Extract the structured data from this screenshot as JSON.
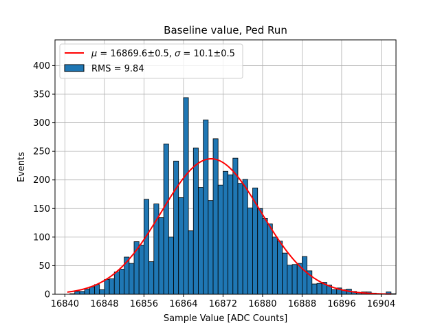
{
  "chart_data": {
    "type": "bar",
    "title": "Baseline value, Ped Run",
    "xlabel": "Sample Value [ADC Counts]",
    "ylabel": "Events",
    "xlim": [
      16838,
      16907
    ],
    "ylim": [
      0,
      445
    ],
    "grid": true,
    "legend_position": "top-left",
    "x_ticks": [
      16840,
      16848,
      16856,
      16864,
      16872,
      16880,
      16888,
      16896,
      16904
    ],
    "y_ticks": [
      0,
      50,
      100,
      150,
      200,
      250,
      300,
      350,
      400
    ],
    "bin_width": 1,
    "bin_start": 16841,
    "bin_counts": [
      1,
      5,
      5,
      9,
      13,
      17,
      8,
      26,
      27,
      39,
      44,
      65,
      54,
      92,
      86,
      166,
      57,
      158,
      134,
      263,
      100,
      233,
      169,
      344,
      111,
      256,
      187,
      305,
      164,
      272,
      191,
      215,
      209,
      238,
      194,
      201,
      151,
      186,
      150,
      133,
      123,
      100,
      93,
      72,
      51,
      52,
      54,
      66,
      41,
      18,
      19,
      21,
      16,
      8,
      11,
      8,
      9,
      5,
      3,
      4,
      4,
      2,
      0,
      0,
      4,
      1
    ],
    "fit": {
      "type": "gaussian",
      "mu": 16869.6,
      "sigma": 10.1,
      "amplitude": 237,
      "x_range": [
        16840.5,
        16906
      ]
    },
    "series": [
      {
        "name": "$\\mu = 16869.6\\pm0.5$, $\\sigma = 10.1\\pm0.5$",
        "type": "line",
        "color": "#ff0000"
      },
      {
        "name": "RMS = 9.84",
        "type": "bar",
        "color": "#1f77b4"
      }
    ],
    "legend": {
      "fit_mu_symbol": "μ",
      "fit_mu_text": " = 16869.6±0.5, ",
      "fit_sigma_symbol": "σ",
      "fit_sigma_text": " = 10.1±0.5",
      "hist_label": "RMS = 9.84"
    },
    "colors": {
      "bar_fill": "#1f77b4",
      "bar_edge": "#000000",
      "fit_line": "#ff0000",
      "grid": "#b0b0b0"
    }
  }
}
